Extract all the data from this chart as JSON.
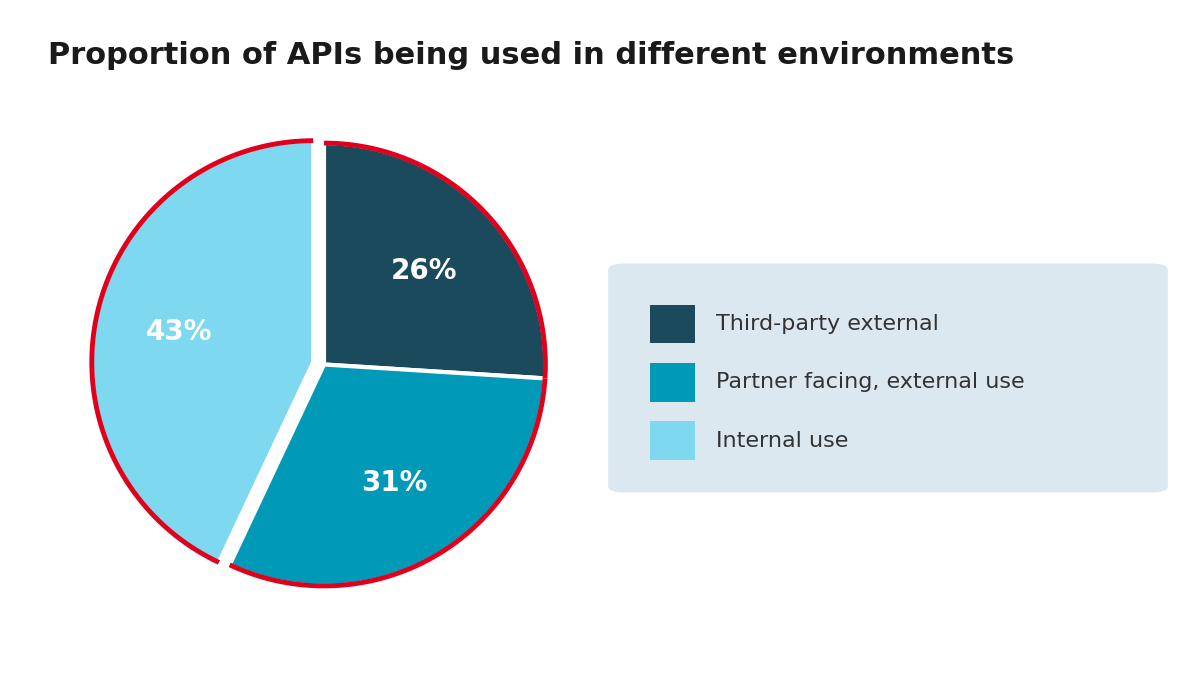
{
  "title": "Proportion of APIs being used in different environments",
  "slices": [
    26,
    31,
    43
  ],
  "labels": [
    "26%",
    "31%",
    "43%"
  ],
  "colors": [
    "#1a4a5c",
    "#0099b8",
    "#7dd8f0"
  ],
  "legend_labels": [
    "Third-party external",
    "Partner facing, external use",
    "Internal use"
  ],
  "legend_colors": [
    "#1a4a5c",
    "#0099b8",
    "#7dd8f0"
  ],
  "legend_bg": "#dce8f0",
  "pie_edge_color": "#e0001b",
  "title_fontsize": 22,
  "label_fontsize": 20,
  "background_color": "#ffffff",
  "startangle": 90
}
